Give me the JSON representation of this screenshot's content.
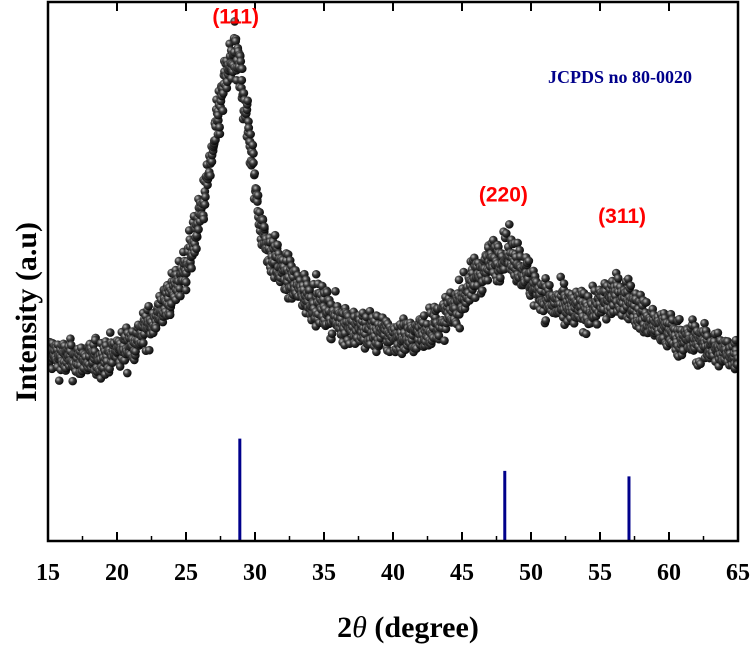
{
  "chart_data": {
    "type": "scatter",
    "xlabel_prefix": "2",
    "xlabel_symbol": "θ",
    "xlabel_suffix": " (degree)",
    "ylabel": "Intensity (a.u)",
    "xlim": [
      15,
      65
    ],
    "xticks": [
      "15",
      "20",
      "25",
      "30",
      "35",
      "40",
      "45",
      "50",
      "55",
      "60",
      "65"
    ],
    "ylim": [
      0,
      100
    ],
    "grid": false,
    "series": [
      {
        "marker": "sphere",
        "color": "#2b2b2b",
        "profile": [
          [
            15,
            35
          ],
          [
            16,
            34
          ],
          [
            17,
            33.5
          ],
          [
            18,
            33.5
          ],
          [
            19,
            34
          ],
          [
            20,
            35
          ],
          [
            21,
            36.5
          ],
          [
            22,
            39
          ],
          [
            23,
            42
          ],
          [
            24,
            46
          ],
          [
            25,
            51
          ],
          [
            25.5,
            55
          ],
          [
            26,
            60
          ],
          [
            26.5,
            66
          ],
          [
            27,
            73
          ],
          [
            27.5,
            81
          ],
          [
            28,
            87
          ],
          [
            28.5,
            90
          ],
          [
            29,
            86
          ],
          [
            29.5,
            77
          ],
          [
            30,
            66
          ],
          [
            30.5,
            58
          ],
          [
            31,
            54
          ],
          [
            32,
            50
          ],
          [
            33,
            47
          ],
          [
            34,
            45
          ],
          [
            35,
            43
          ],
          [
            36,
            41
          ],
          [
            37,
            40
          ],
          [
            38,
            39
          ],
          [
            39,
            38.5
          ],
          [
            40,
            38
          ],
          [
            41,
            38
          ],
          [
            42,
            38.5
          ],
          [
            43,
            40
          ],
          [
            44,
            42
          ],
          [
            45,
            45
          ],
          [
            46,
            49
          ],
          [
            47,
            52
          ],
          [
            48,
            53
          ],
          [
            48.5,
            53
          ],
          [
            49,
            52
          ],
          [
            50,
            48
          ],
          [
            51,
            45
          ],
          [
            52,
            43.5
          ],
          [
            53,
            43
          ],
          [
            54,
            43
          ],
          [
            55,
            44
          ],
          [
            56,
            45.5
          ],
          [
            57,
            45
          ],
          [
            58,
            42
          ],
          [
            59,
            40
          ],
          [
            60,
            38.5
          ],
          [
            61,
            37.5
          ],
          [
            62,
            37
          ],
          [
            63,
            36
          ],
          [
            64,
            35
          ],
          [
            65,
            34.5
          ]
        ]
      }
    ],
    "annotations": [
      {
        "text": "(111)",
        "x": 28.6,
        "y": 96
      },
      {
        "text": "(220)",
        "x": 48.0,
        "y": 63
      },
      {
        "text": "(311)",
        "x": 56.6,
        "y": 59
      }
    ],
    "reference": {
      "label": "JCPDS no 80-0020",
      "color": "#00008b",
      "lines": [
        {
          "x": 28.9,
          "height": 19
        },
        {
          "x": 48.1,
          "height": 13
        },
        {
          "x": 57.1,
          "height": 12
        }
      ]
    }
  }
}
